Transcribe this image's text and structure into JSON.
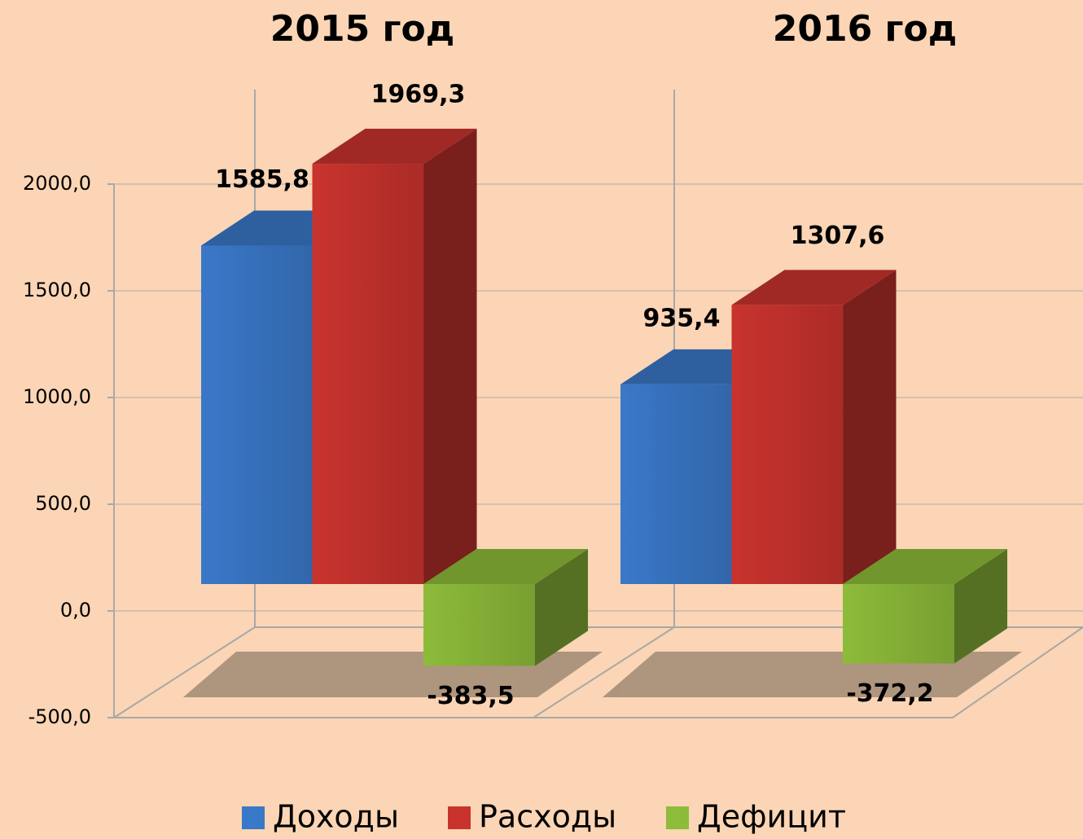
{
  "chart_data": {
    "type": "bar3d",
    "categories": [
      "2015 год",
      "2016 год"
    ],
    "series": [
      {
        "name": "Доходы",
        "color": "#3a78c8",
        "values": [
          1585.8,
          935.4
        ],
        "value_labels": [
          "1585,8",
          "935,4"
        ]
      },
      {
        "name": "Расходы",
        "color": "#c9332e",
        "values": [
          1969.3,
          1307.6
        ],
        "value_labels": [
          "1969,3",
          "1307,6"
        ]
      },
      {
        "name": "Дефицит",
        "color": "#8dbb3a",
        "values": [
          -383.5,
          -372.2
        ],
        "value_labels": [
          "-383,5",
          "-372,2"
        ]
      }
    ],
    "ylim": [
      -500,
      2000
    ],
    "yticks": [
      {
        "value": -500,
        "label": "-500,0"
      },
      {
        "value": 0,
        "label": "0,0"
      },
      {
        "value": 500,
        "label": "500,0"
      },
      {
        "value": 1000,
        "label": "1000,0"
      },
      {
        "value": 1500,
        "label": "1500,0"
      },
      {
        "value": 2000,
        "label": "2000,0"
      }
    ],
    "grid": true,
    "legend": "bottom"
  }
}
